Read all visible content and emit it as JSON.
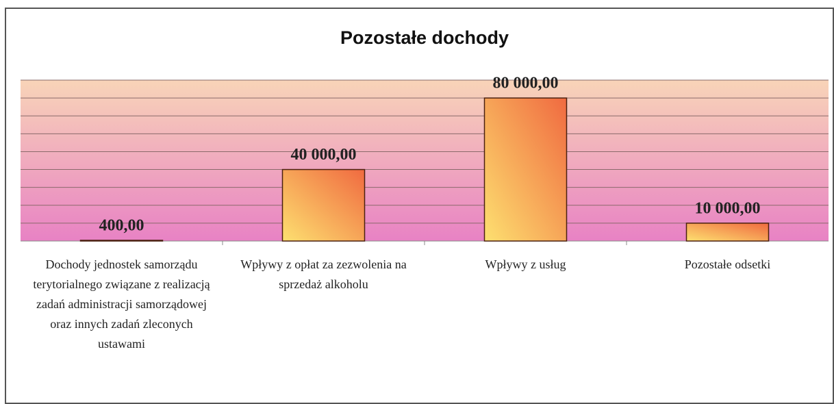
{
  "chart_data": {
    "type": "bar",
    "title": "Pozostałe dochody",
    "categories": [
      "Dochody jednostek samorządu terytorialnego związane z realizacją zadań administracji samorządowej oraz innych zadań zleconych ustawami",
      "Wpływy z opłat za zezwolenia na sprzedaż alkoholu",
      "Wpływy z usług",
      "Pozostałe odsetki"
    ],
    "values": [
      400,
      40000,
      80000,
      10000
    ],
    "value_labels": [
      "400,00",
      "40 000,00",
      "80 000,00",
      "10 000,00"
    ],
    "color": "#f5a040",
    "ylim": [
      0,
      90000
    ],
    "yticks": [
      0,
      10000,
      20000,
      30000,
      40000,
      50000,
      60000,
      70000,
      80000,
      90000
    ],
    "grid": true
  }
}
